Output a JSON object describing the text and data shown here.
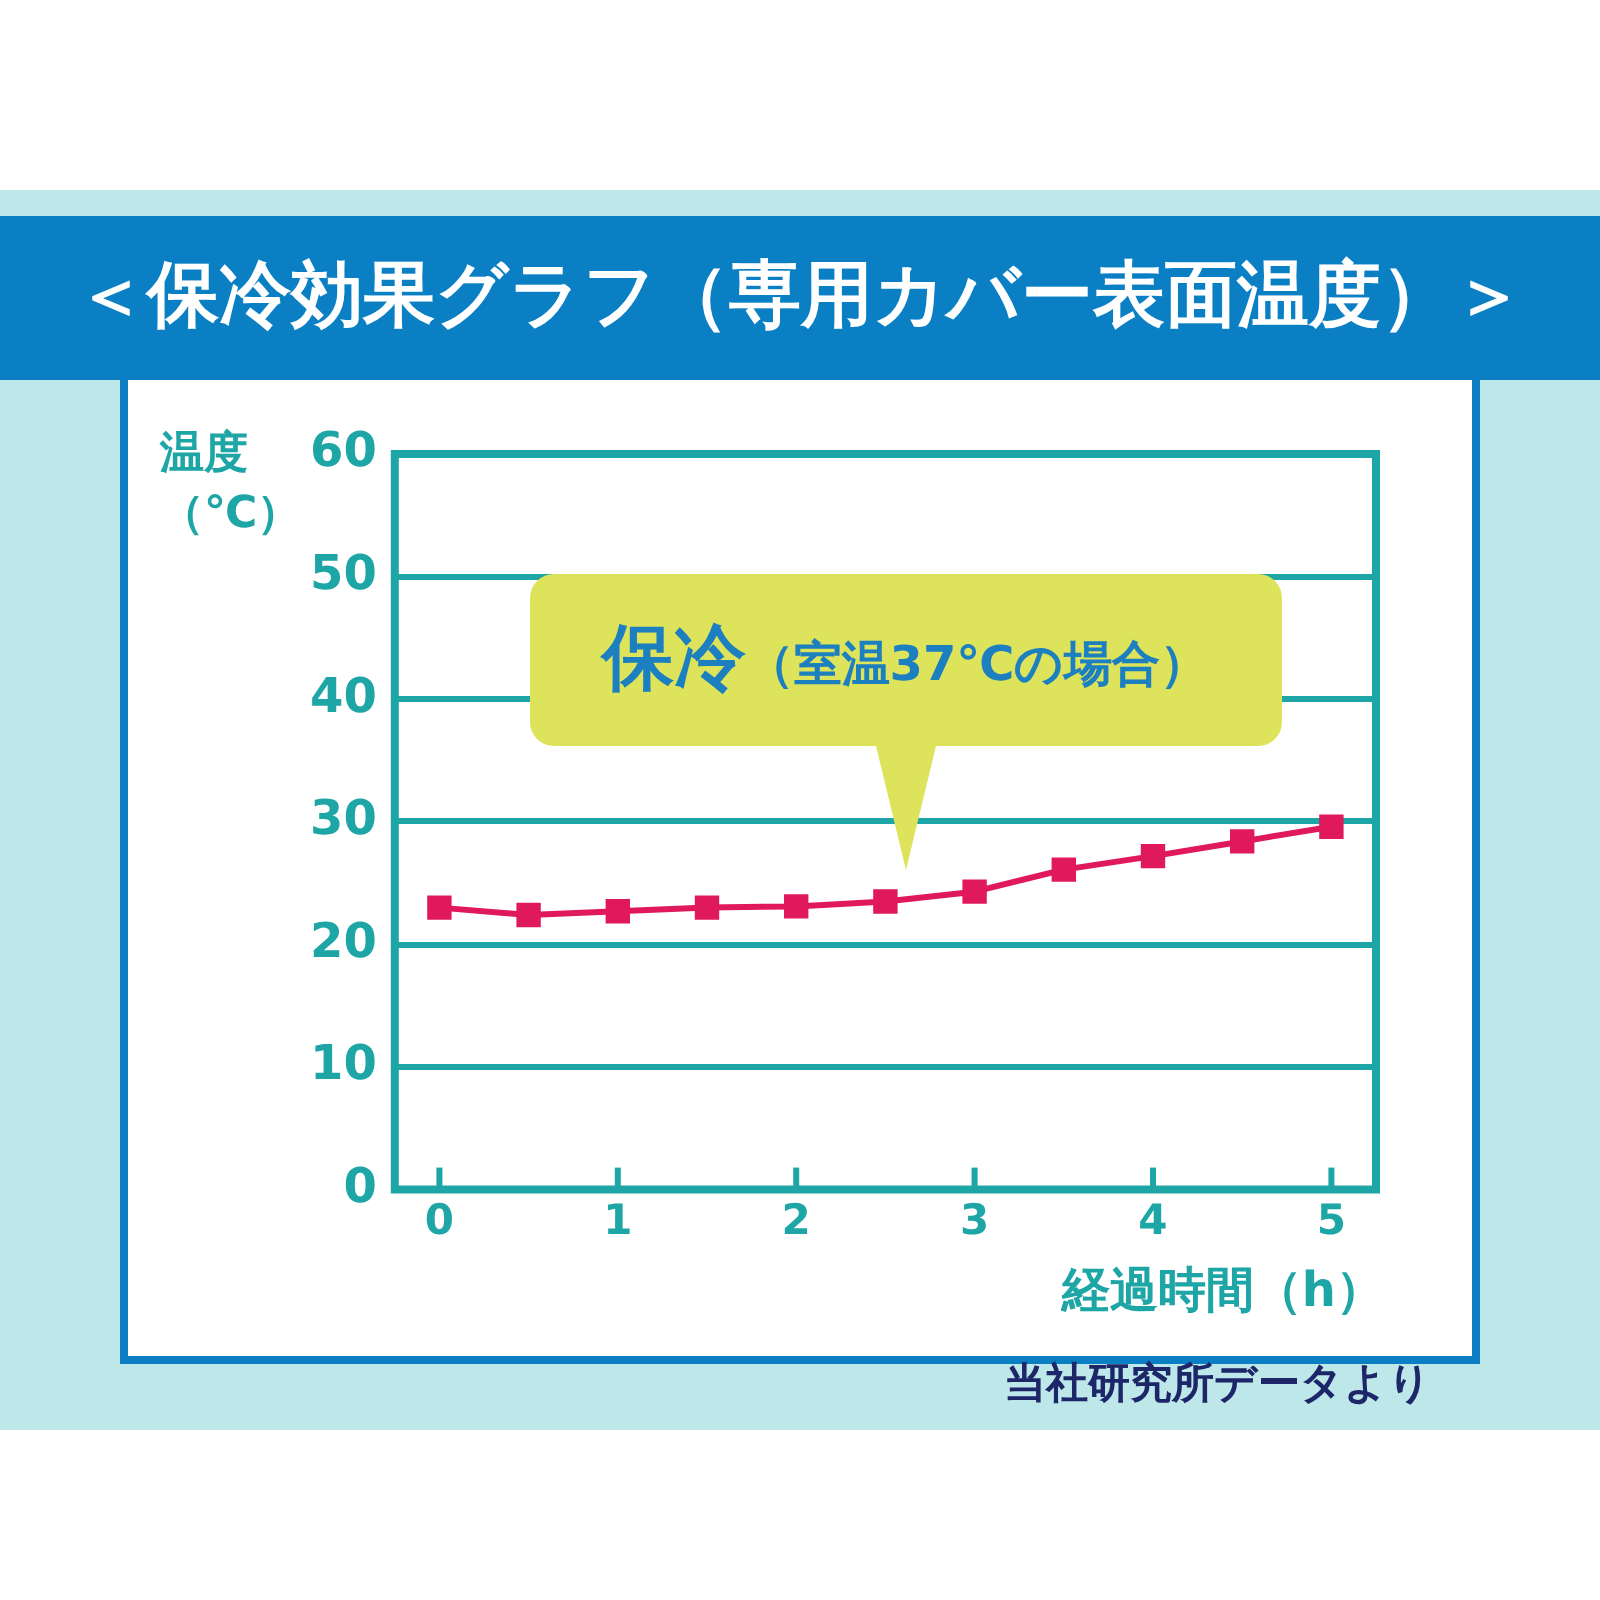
{
  "chart_data": {
    "type": "line",
    "title": "＜保冷効果グラフ（専用カバー表面温度）＞",
    "xlabel": "経過時間（h）",
    "ylabel": "温度（℃）",
    "x": [
      0,
      0.5,
      1,
      1.5,
      2,
      2.5,
      3,
      3.5,
      4,
      4.5,
      5
    ],
    "series": [
      {
        "color": "#e0185c",
        "values": [
          23.0,
          22.4,
          22.7,
          23.0,
          23.1,
          23.5,
          24.3,
          26.1,
          27.2,
          28.4,
          29.6
        ]
      }
    ],
    "xlim": [
      -0.25,
      5.25
    ],
    "xticks": [
      0,
      1,
      2,
      3,
      4,
      5
    ],
    "ylim": [
      0,
      60
    ],
    "yticks": [
      0,
      10,
      20,
      30,
      40,
      50,
      60
    ],
    "grid": "y",
    "marker": "square",
    "line_style": "solid",
    "annotations": [
      "保冷（室温37℃の場合）",
      "当社研究所データより"
    ]
  }
}
